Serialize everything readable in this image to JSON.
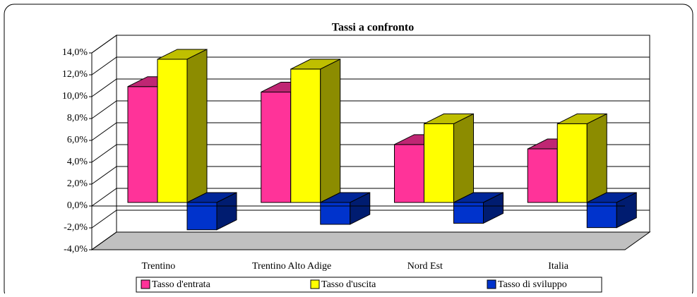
{
  "chart_data": {
    "type": "bar3d",
    "title": "Tassi a confronto",
    "categories": [
      "Trentino",
      "Trentino Alto Adige",
      "Nord Est",
      "Italia"
    ],
    "series": [
      {
        "name": "Tasso d'entrata",
        "color": "#ff3399",
        "values": [
          10.6,
          10.1,
          5.3,
          4.9
        ]
      },
      {
        "name": "Tasso d'uscita",
        "color": "#ffff00",
        "values": [
          13.1,
          12.2,
          7.2,
          7.2
        ]
      },
      {
        "name": "Tasso di sviluppo",
        "color": "#0033cc",
        "values": [
          -2.5,
          -2.0,
          -1.9,
          -2.3
        ]
      }
    ],
    "ylim": [
      -4,
      14
    ],
    "yticks": [
      {
        "value": -4,
        "label": "-4,0%"
      },
      {
        "value": -2,
        "label": "-2,0%"
      },
      {
        "value": 0,
        "label": "0,0%"
      },
      {
        "value": 2,
        "label": "2,0%"
      },
      {
        "value": 4,
        "label": "4,0%"
      },
      {
        "value": 6,
        "label": "6,0%"
      },
      {
        "value": 8,
        "label": "8,0%"
      },
      {
        "value": 10,
        "label": "10,0%"
      },
      {
        "value": 12,
        "label": "12,0%"
      },
      {
        "value": 14,
        "label": "14,0%"
      }
    ],
    "grid": true,
    "legend": "bottom"
  }
}
